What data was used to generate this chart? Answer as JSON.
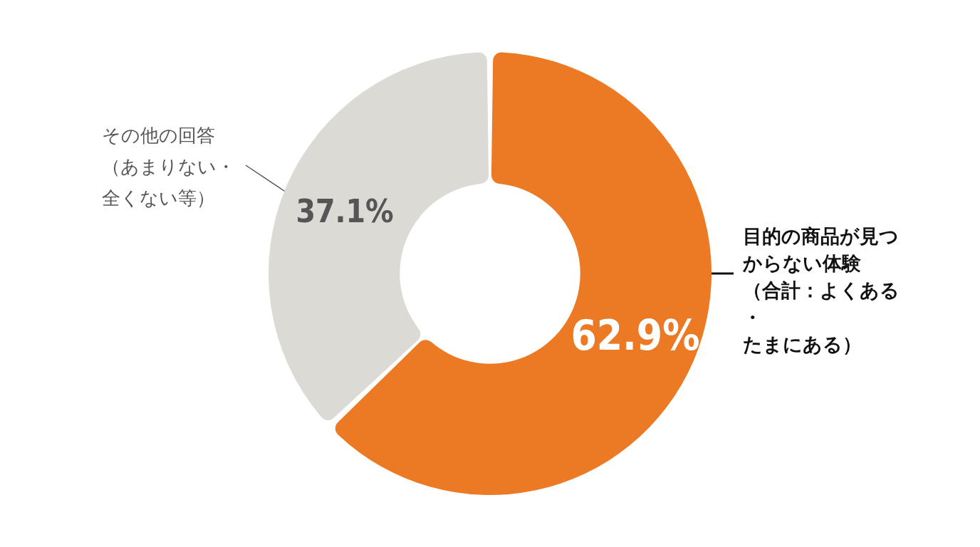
{
  "chart_data": {
    "type": "donut",
    "categories": [
      "目的の商品が見つからない体験（合計：よくある・たまにある）",
      "その他の回答（あまりない・全くない等）"
    ],
    "values": [
      62.9,
      37.1
    ],
    "colors": [
      "#ec7a24",
      "#dcdad5"
    ],
    "value_labels": [
      "62.9%",
      "37.1%"
    ],
    "legend": false
  }
}
